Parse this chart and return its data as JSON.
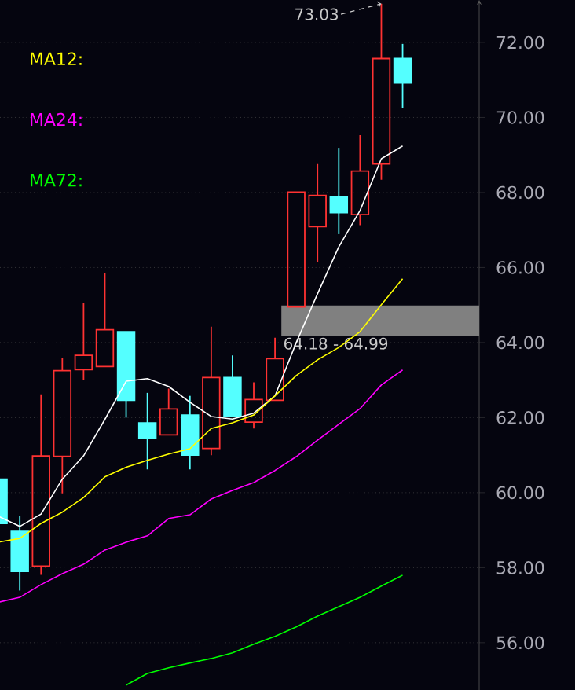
{
  "chart_data": {
    "type": "candlestick",
    "categories": [
      null,
      null,
      null,
      null,
      null,
      null,
      null,
      null,
      null,
      null,
      null,
      null,
      null,
      null,
      null,
      null,
      null,
      null,
      null,
      null
    ],
    "ohlc": [
      [
        60.36,
        60.36,
        59.18,
        59.18
      ],
      [
        58.97,
        59.39,
        57.39,
        57.9
      ],
      [
        58.04,
        62.62,
        57.81,
        60.98
      ],
      [
        60.97,
        63.58,
        59.98,
        63.25
      ],
      [
        63.28,
        65.06,
        63.01,
        63.66
      ],
      [
        63.36,
        65.84,
        63.36,
        64.34
      ],
      [
        64.29,
        64.29,
        62.0,
        62.46
      ],
      [
        61.86,
        62.66,
        60.62,
        61.46
      ],
      [
        61.54,
        62.77,
        61.52,
        62.23
      ],
      [
        62.07,
        62.58,
        60.62,
        61.0
      ],
      [
        61.18,
        64.42,
        61.0,
        63.07
      ],
      [
        63.07,
        63.66,
        62.03,
        62.03
      ],
      [
        61.88,
        62.94,
        61.71,
        62.48
      ],
      [
        62.46,
        64.13,
        62.46,
        63.57
      ],
      [
        64.95,
        68.01,
        64.95,
        68.01
      ],
      [
        67.09,
        68.76,
        66.15,
        67.92
      ],
      [
        67.88,
        69.19,
        66.89,
        67.46
      ],
      [
        67.41,
        69.53,
        67.13,
        68.57
      ],
      [
        68.76,
        73.03,
        68.34,
        71.57
      ],
      [
        71.57,
        71.96,
        70.25,
        70.92
      ]
    ],
    "colors": [
      "#54ffff",
      "#54ffff",
      "#ff3232",
      "#ff3232",
      "#ff3232",
      "#ff3232",
      "#54ffff",
      "#54ffff",
      "#ff3232",
      "#54ffff",
      "#ff3232",
      "#54ffff",
      "#ff3232",
      "#ff3232",
      "#ff3232",
      "#ff3232",
      "#54ffff",
      "#ff3232",
      "#ff3232",
      "#54ffff"
    ],
    "series": [
      {
        "type": "line",
        "color": "#ffffff",
        "values": [
          59.37,
          59.1,
          59.43,
          60.36,
          60.98,
          61.95,
          62.97,
          63.04,
          62.83,
          62.41,
          62.03,
          61.96,
          62.12,
          62.58,
          64.0,
          65.3,
          66.55,
          67.52,
          68.9,
          69.24
        ]
      },
      {
        "type": "line",
        "name": "MA12:",
        "color": "#ffff00",
        "values": [
          58.68,
          58.78,
          59.18,
          59.48,
          59.87,
          60.42,
          60.68,
          60.86,
          61.03,
          61.17,
          61.71,
          61.86,
          62.07,
          62.58,
          63.12,
          63.54,
          63.87,
          64.29,
          65.01,
          65.7
        ]
      },
      {
        "type": "line",
        "name": "MA24:",
        "color": "#ff00ff",
        "values": [
          57.08,
          57.21,
          57.55,
          57.84,
          58.09,
          58.47,
          58.68,
          58.85,
          59.31,
          59.41,
          59.83,
          60.06,
          60.27,
          60.59,
          60.96,
          61.4,
          61.82,
          62.24,
          62.87,
          63.27
        ]
      },
      {
        "type": "line",
        "name": "MA72:",
        "color": "#00ff00",
        "values": [
          null,
          null,
          null,
          null,
          null,
          null,
          54.87,
          55.18,
          55.33,
          55.46,
          55.58,
          55.73,
          55.96,
          56.17,
          56.42,
          56.71,
          56.96,
          57.21,
          57.51,
          57.8
        ]
      }
    ],
    "ylim": [
      54.74,
      73.13
    ],
    "yticks": [
      {
        "value": 56,
        "label": "56.00"
      },
      {
        "value": 58,
        "label": "58.00"
      },
      {
        "value": 60,
        "label": "60.00"
      },
      {
        "value": 62,
        "label": "62.00"
      },
      {
        "value": 64,
        "label": "64.00"
      },
      {
        "value": 66,
        "label": "66.00"
      },
      {
        "value": 68,
        "label": "68.00"
      },
      {
        "value": 70,
        "label": "70.00"
      },
      {
        "value": 72,
        "label": "72.00"
      }
    ],
    "grid": "y",
    "legend": "top left",
    "bands": [
      {
        "axis": "y",
        "from": 64.18,
        "to": 64.99,
        "label": "64.18 - 64.99",
        "color": "#808080"
      }
    ],
    "annotations": [
      "73.03"
    ]
  }
}
